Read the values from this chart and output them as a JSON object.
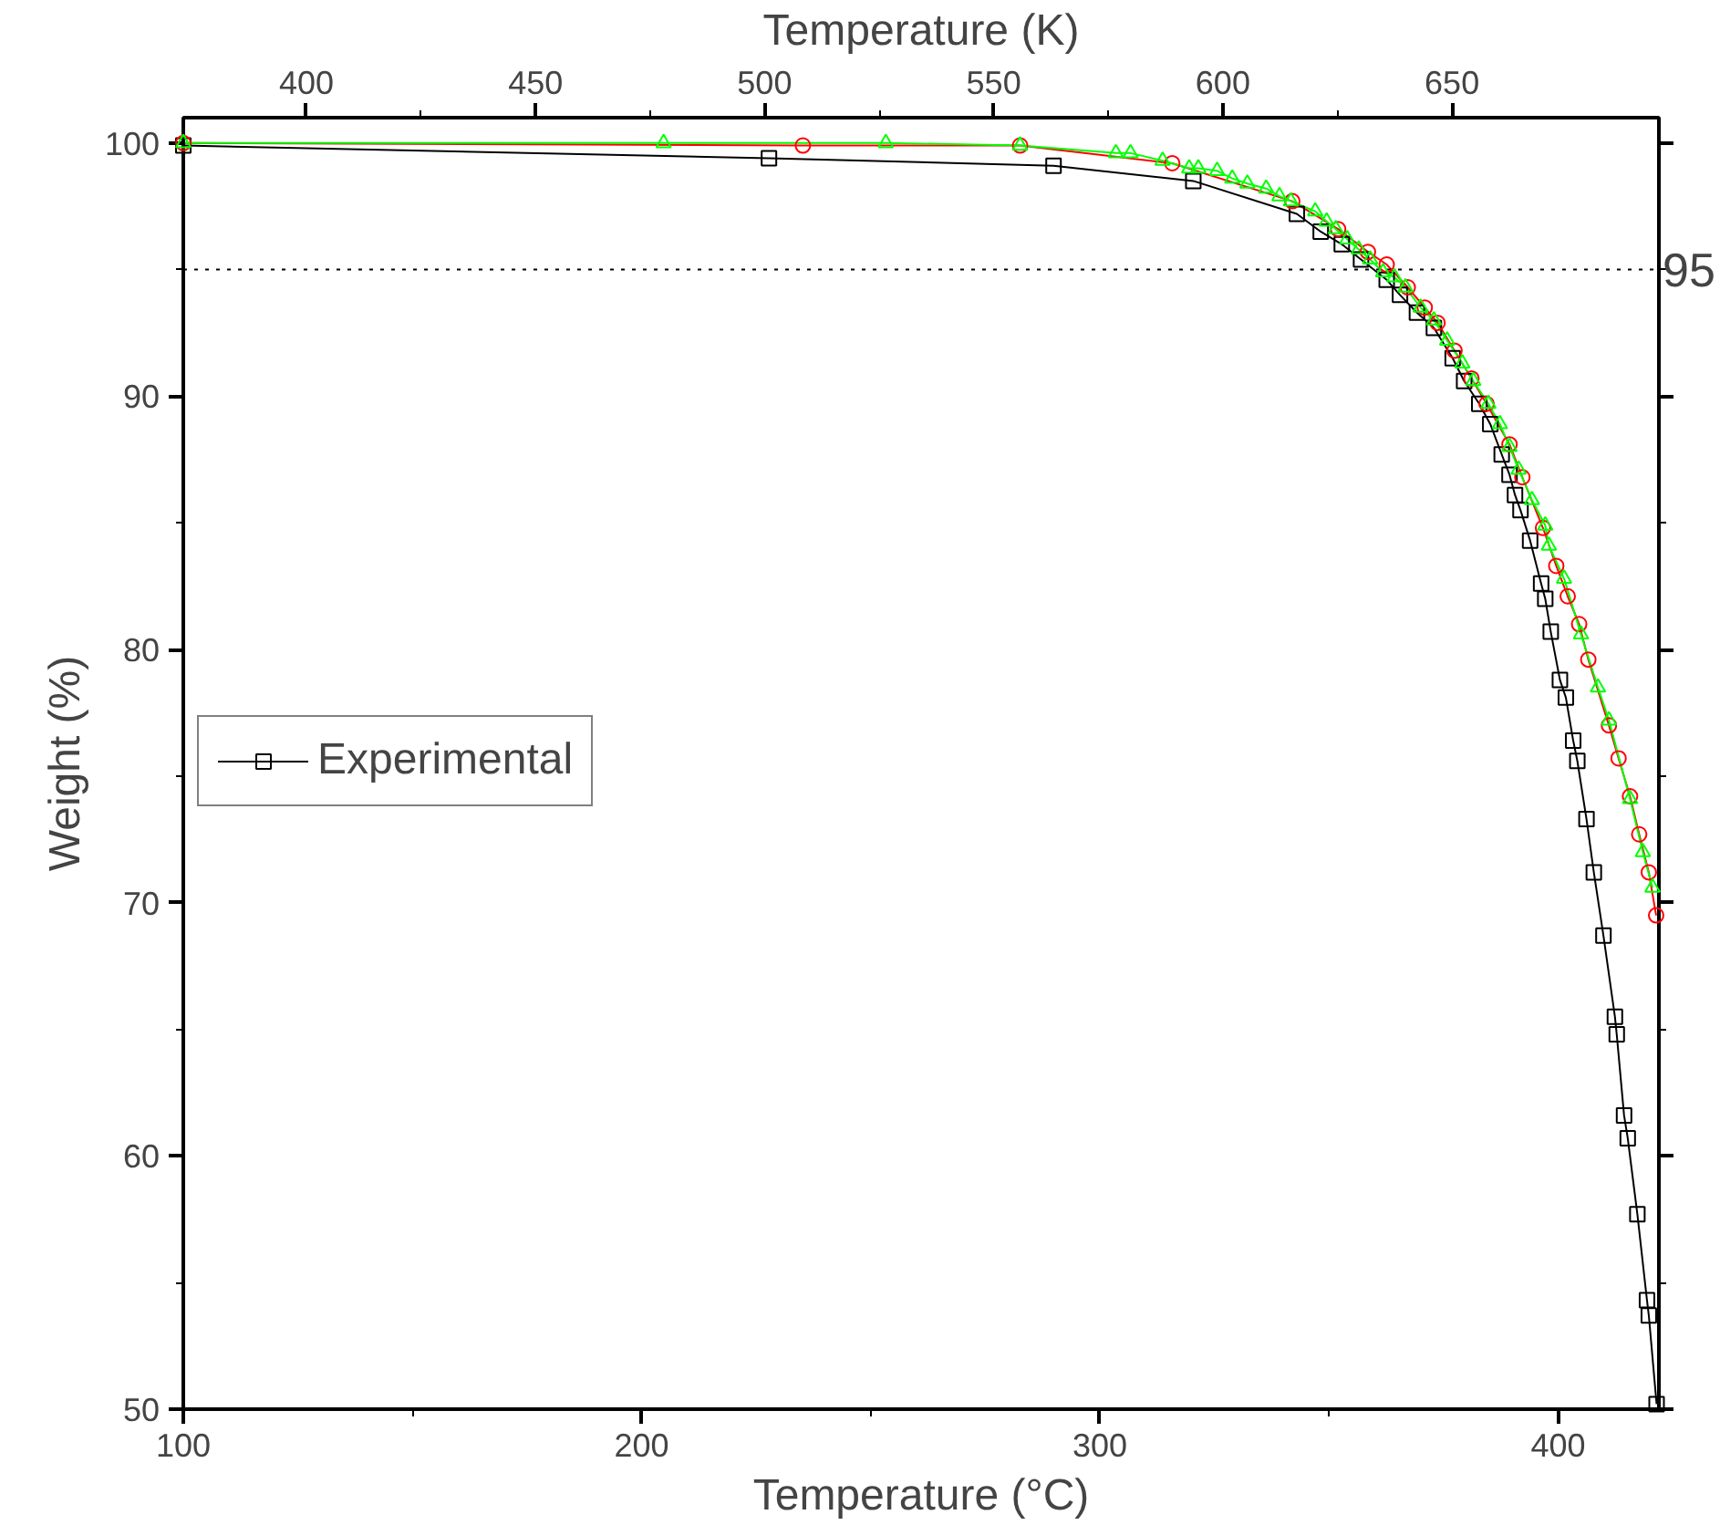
{
  "chart_data": {
    "type": "line",
    "xlabel": "Temperature (°C)",
    "ylabel": "Weight (%)",
    "x2label": "Temperature (K)",
    "xlim": [
      100,
      422
    ],
    "xticks": [
      100,
      200,
      300,
      400
    ],
    "x2lim": [
      373.15,
      695.15
    ],
    "x2ticks": [
      400,
      450,
      500,
      550,
      600,
      650
    ],
    "ylim": [
      50,
      101
    ],
    "yticks": [
      50,
      60,
      70,
      80,
      90,
      100
    ],
    "grid": false,
    "legend": "left",
    "line_style": "solid",
    "ref_lines": [
      {
        "axis": "y",
        "value": 95,
        "label": "95",
        "line_style": "dotted",
        "color": "#000000"
      }
    ],
    "series": [
      {
        "name": "Experimental",
        "color": "#000000",
        "marker": "square",
        "x": [
          100,
          227.8,
          289.9,
          320.4,
          343.0,
          348.2,
          352.8,
          357.0,
          362.6,
          365.5,
          369.2,
          372.9,
          377.0,
          379.5,
          382.8,
          385.2,
          387.7,
          389.4,
          390.6,
          391.8,
          393.9,
          396.3,
          397.2,
          398.4,
          400.4,
          401.7,
          403.3,
          404.2,
          406.2,
          407.8,
          409.9,
          412.4,
          412.8,
          414.4,
          415.2,
          417.3,
          419.4,
          419.8,
          421.5
        ],
        "values": [
          99.9,
          99.4,
          99.1,
          98.5,
          97.2,
          96.5,
          96.0,
          95.4,
          94.6,
          94.0,
          93.3,
          92.7,
          91.5,
          90.6,
          89.7,
          88.9,
          87.7,
          86.9,
          86.1,
          85.5,
          84.3,
          82.6,
          82.0,
          80.7,
          78.8,
          78.1,
          76.4,
          75.6,
          73.3,
          71.2,
          68.7,
          65.5,
          64.8,
          61.6,
          60.7,
          57.7,
          54.3,
          53.7,
          50.2
        ]
      },
      {
        "color": "#ff0000",
        "marker": "circle",
        "x": [
          100,
          235.2,
          282.6,
          315.8,
          342.0,
          352.0,
          358.5,
          362.6,
          367.2,
          370.9,
          373.7,
          377.4,
          381.1,
          384.4,
          389.4,
          392.2,
          396.7,
          399.6,
          402.1,
          404.6,
          406.6,
          411.1,
          413.2,
          415.7,
          417.7,
          419.8,
          421.4
        ],
        "values": [
          100.0,
          99.9,
          99.9,
          99.2,
          97.7,
          96.6,
          95.7,
          95.2,
          94.3,
          93.5,
          92.9,
          91.8,
          90.7,
          89.7,
          88.1,
          86.8,
          84.8,
          83.3,
          82.1,
          81.0,
          79.6,
          77.0,
          75.7,
          74.2,
          72.7,
          71.2,
          69.5
        ]
      },
      {
        "color": "#00ff00",
        "marker": "triangle",
        "x": [
          100,
          204.8,
          253.3,
          282.6,
          303.5,
          306.7,
          313.7,
          319.5,
          321.5,
          325.6,
          328.9,
          332.2,
          336.3,
          339.2,
          341.7,
          347.0,
          349.5,
          351.5,
          354.0,
          356.5,
          359.0,
          361.8,
          364.3,
          366.7,
          370.0,
          372.9,
          375.8,
          379.1,
          381.5,
          384.8,
          387.3,
          389.4,
          391.4,
          394.3,
          397.2,
          398.0,
          401.3,
          405.0,
          408.7,
          411.1,
          415.7,
          418.5,
          420.6
        ],
        "values": [
          100.0,
          100.0,
          100.0,
          99.9,
          99.6,
          99.6,
          99.3,
          99.0,
          99.0,
          98.9,
          98.6,
          98.4,
          98.2,
          97.9,
          97.7,
          97.3,
          96.9,
          96.6,
          96.2,
          95.8,
          95.4,
          94.9,
          94.7,
          94.3,
          93.5,
          93.0,
          92.2,
          91.3,
          90.6,
          89.7,
          88.9,
          88.0,
          87.1,
          85.9,
          84.9,
          84.1,
          82.8,
          80.6,
          78.5,
          77.2,
          74.1,
          72.0,
          70.6
        ]
      }
    ]
  }
}
